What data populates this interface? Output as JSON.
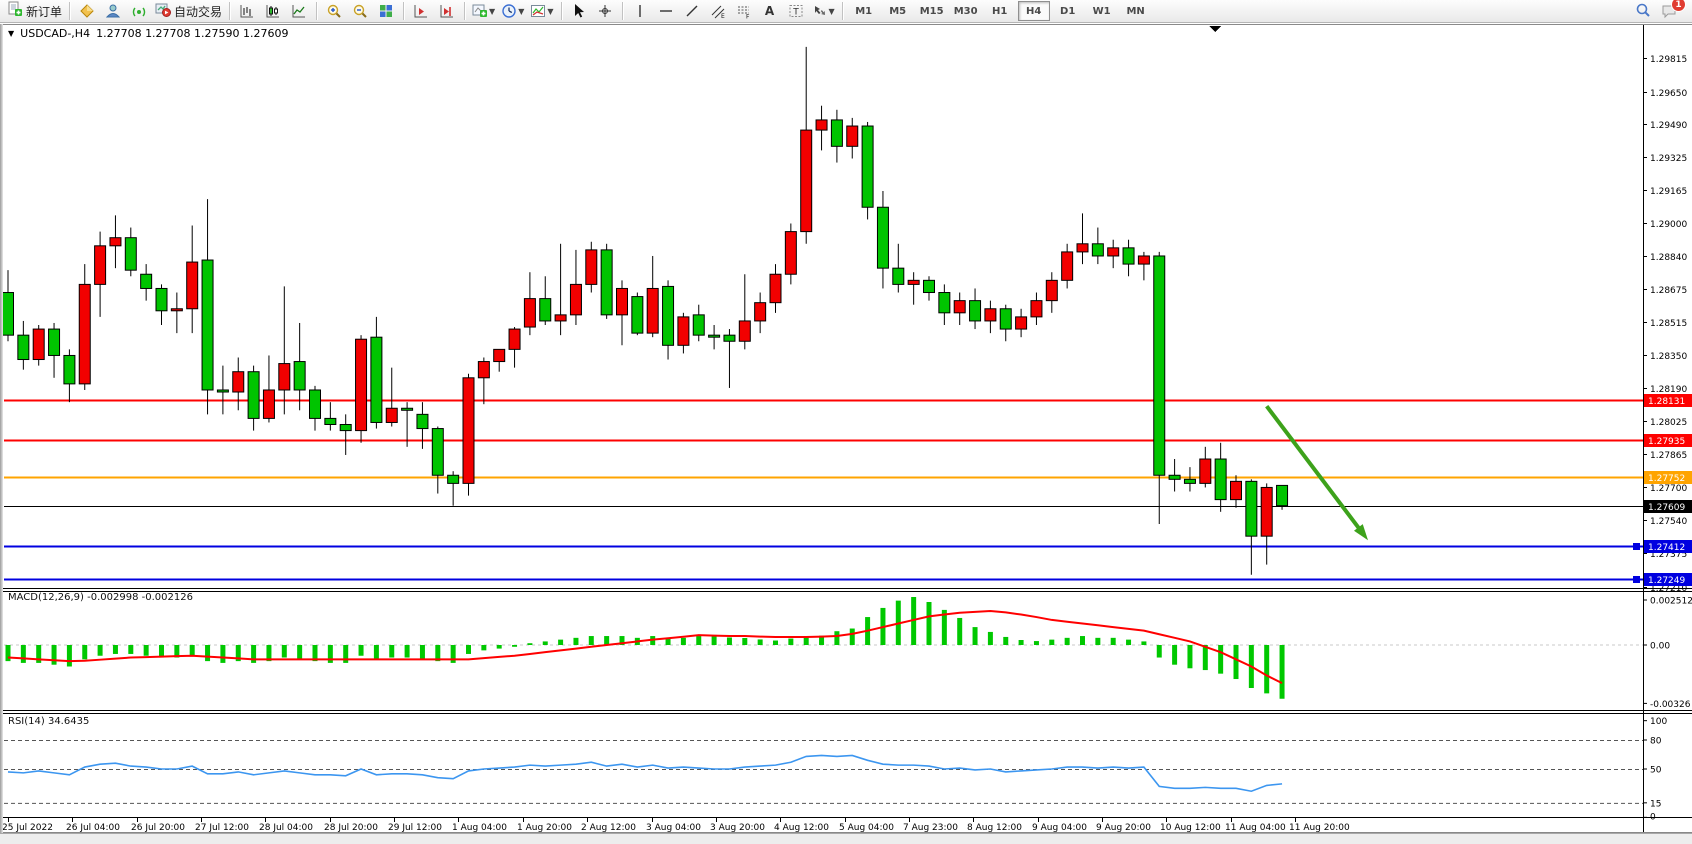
{
  "toolbar": {
    "new_order_label": "新订单",
    "autotrading_label": "自动交易",
    "timeframes": [
      "M1",
      "M5",
      "M15",
      "M30",
      "H1",
      "H4",
      "D1",
      "W1",
      "MN"
    ],
    "active_timeframe": "H4",
    "notification_count": "1",
    "icon_names": [
      "new-order",
      "gold-cube",
      "profile",
      "signal",
      "autotrading",
      "bar-chart",
      "candlestick-chart",
      "line-chart",
      "zoom-in",
      "zoom-out",
      "tile-windows",
      "chart-forward",
      "chart-end",
      "add-indicator",
      "period",
      "template",
      "cursor",
      "crosshair",
      "vertical-line",
      "horizontal-line",
      "trendline",
      "equidistant-channel",
      "fibonacci",
      "text",
      "text-label",
      "arrow-tools",
      "search",
      "chat"
    ]
  },
  "chart_window": {
    "collapse_glyph": "▼",
    "symbol_title": "USDCAD-,H4",
    "ohlc_text": "1.27708 1.27708 1.27590 1.27609"
  },
  "chart_data": {
    "type": "candlestick",
    "symbol": "USDCAD-",
    "period": "H4",
    "up_color": "#f20000",
    "down_color": "#00c400",
    "outline_color": "#000000",
    "time_labels": [
      "25 Jul 2022",
      "26 Jul 04:00",
      "26 Jul 20:00",
      "27 Jul 12:00",
      "28 Jul 04:00",
      "28 Jul 20:00",
      "29 Jul 12:00",
      "1 Aug 04:00",
      "1 Aug 20:00",
      "2 Aug 12:00",
      "3 Aug 04:00",
      "3 Aug 20:00",
      "4 Aug 12:00",
      "5 Aug 04:00",
      "7 Aug 23:00",
      "8 Aug 12:00",
      "9 Aug 04:00",
      "9 Aug 20:00",
      "10 Aug 12:00",
      "11 Aug 04:00",
      "11 Aug 20:00"
    ],
    "price_ticks": [
      "1.29815",
      "1.29650",
      "1.29490",
      "1.29325",
      "1.29165",
      "1.29000",
      "1.28840",
      "1.28675",
      "1.28515",
      "1.28350",
      "1.28190",
      "1.28025",
      "1.27865",
      "1.27700",
      "1.27540",
      "1.27375",
      "1.27210"
    ],
    "candles": [
      [
        1.2866,
        1.2877,
        1.2842,
        1.2845
      ],
      [
        1.2845,
        1.2852,
        1.2828,
        1.2833
      ],
      [
        1.2833,
        1.285,
        1.283,
        1.2848
      ],
      [
        1.2848,
        1.2851,
        1.2824,
        1.2835
      ],
      [
        1.2835,
        1.2838,
        1.2812,
        1.2821
      ],
      [
        1.2821,
        1.288,
        1.2818,
        1.287
      ],
      [
        1.287,
        1.2896,
        1.2854,
        1.2889
      ],
      [
        1.2889,
        1.2904,
        1.2878,
        1.2893
      ],
      [
        1.2893,
        1.2898,
        1.2874,
        1.2877
      ],
      [
        1.2875,
        1.288,
        1.2862,
        1.2868
      ],
      [
        1.2868,
        1.287,
        1.285,
        1.2857
      ],
      [
        1.2857,
        1.2866,
        1.2846,
        1.2858
      ],
      [
        1.2858,
        1.2899,
        1.2846,
        1.2881
      ],
      [
        1.2882,
        1.2912,
        1.2806,
        1.2818
      ],
      [
        1.2818,
        1.283,
        1.2806,
        1.2817
      ],
      [
        1.2817,
        1.2834,
        1.2808,
        1.2827
      ],
      [
        1.2827,
        1.283,
        1.2798,
        1.2804
      ],
      [
        1.2804,
        1.2835,
        1.2802,
        1.2818
      ],
      [
        1.2818,
        1.2869,
        1.2806,
        1.2831
      ],
      [
        1.2832,
        1.2851,
        1.2808,
        1.2818
      ],
      [
        1.2818,
        1.282,
        1.2798,
        1.2804
      ],
      [
        1.2804,
        1.2812,
        1.2798,
        1.2801
      ],
      [
        1.2801,
        1.2806,
        1.2786,
        1.2798
      ],
      [
        1.2798,
        1.2845,
        1.2792,
        1.2843
      ],
      [
        1.2844,
        1.2854,
        1.2799,
        1.2802
      ],
      [
        1.2802,
        1.2829,
        1.28,
        1.2809
      ],
      [
        1.2809,
        1.2812,
        1.279,
        1.2808
      ],
      [
        1.2806,
        1.2812,
        1.2789,
        1.2799
      ],
      [
        1.2799,
        1.28,
        1.2767,
        1.2776
      ],
      [
        1.2776,
        1.2778,
        1.2761,
        1.2772
      ],
      [
        1.2772,
        1.2826,
        1.2766,
        1.2824
      ],
      [
        1.2824,
        1.2834,
        1.2811,
        1.2832
      ],
      [
        1.2832,
        1.2838,
        1.2827,
        1.2838
      ],
      [
        1.2838,
        1.2849,
        1.2829,
        1.2848
      ],
      [
        1.2849,
        1.2876,
        1.2845,
        1.2863
      ],
      [
        1.2863,
        1.2874,
        1.285,
        1.2852
      ],
      [
        1.2852,
        1.289,
        1.2845,
        1.2855
      ],
      [
        1.2855,
        1.2887,
        1.285,
        1.287
      ],
      [
        1.287,
        1.2891,
        1.2866,
        1.2887
      ],
      [
        1.2887,
        1.289,
        1.2853,
        1.2855
      ],
      [
        1.2855,
        1.2872,
        1.284,
        1.2868
      ],
      [
        1.2864,
        1.2866,
        1.2845,
        1.2846
      ],
      [
        1.2846,
        1.2884,
        1.2844,
        1.2868
      ],
      [
        1.2869,
        1.2872,
        1.2833,
        1.284
      ],
      [
        1.284,
        1.2856,
        1.2836,
        1.2854
      ],
      [
        1.2855,
        1.286,
        1.2842,
        1.2845
      ],
      [
        1.2845,
        1.285,
        1.2838,
        1.2844
      ],
      [
        1.2845,
        1.2848,
        1.2819,
        1.2842
      ],
      [
        1.2842,
        1.2875,
        1.2838,
        1.2852
      ],
      [
        1.2852,
        1.2866,
        1.2846,
        1.2861
      ],
      [
        1.2861,
        1.288,
        1.2856,
        1.2875
      ],
      [
        1.2875,
        1.29,
        1.287,
        1.2896
      ],
      [
        1.2896,
        1.2987,
        1.289,
        1.2946
      ],
      [
        1.2946,
        1.2958,
        1.2936,
        1.2951
      ],
      [
        1.2951,
        1.2956,
        1.293,
        1.2938
      ],
      [
        1.2938,
        1.2952,
        1.2932,
        1.2948
      ],
      [
        1.2948,
        1.295,
        1.2902,
        1.2908
      ],
      [
        1.2908,
        1.2916,
        1.2868,
        1.2878
      ],
      [
        1.2878,
        1.289,
        1.2866,
        1.287
      ],
      [
        1.287,
        1.2876,
        1.286,
        1.2872
      ],
      [
        1.2872,
        1.2874,
        1.2862,
        1.2866
      ],
      [
        1.2866,
        1.287,
        1.285,
        1.2856
      ],
      [
        1.2856,
        1.2866,
        1.285,
        1.2862
      ],
      [
        1.2862,
        1.2868,
        1.2848,
        1.2852
      ],
      [
        1.2852,
        1.2862,
        1.2846,
        1.2858
      ],
      [
        1.2858,
        1.286,
        1.2842,
        1.2848
      ],
      [
        1.2848,
        1.2858,
        1.2844,
        1.2854
      ],
      [
        1.2854,
        1.2866,
        1.285,
        1.2862
      ],
      [
        1.2862,
        1.2876,
        1.2856,
        1.2872
      ],
      [
        1.2872,
        1.289,
        1.2868,
        1.2886
      ],
      [
        1.2886,
        1.2905,
        1.288,
        1.289
      ],
      [
        1.289,
        1.2898,
        1.288,
        1.2884
      ],
      [
        1.2884,
        1.2892,
        1.2878,
        1.2888
      ],
      [
        1.2888,
        1.2892,
        1.2874,
        1.288
      ],
      [
        1.288,
        1.2886,
        1.2872,
        1.2884
      ],
      [
        1.2884,
        1.2886,
        1.2752,
        1.2776
      ],
      [
        1.2776,
        1.2784,
        1.2768,
        1.2774
      ],
      [
        1.2774,
        1.278,
        1.2768,
        1.2772
      ],
      [
        1.2772,
        1.279,
        1.277,
        1.2784
      ],
      [
        1.2784,
        1.2792,
        1.2758,
        1.2764
      ],
      [
        1.2764,
        1.2776,
        1.276,
        1.2773
      ],
      [
        1.2773,
        1.2774,
        1.2727,
        1.2746
      ],
      [
        1.2746,
        1.2772,
        1.2732,
        1.277
      ],
      [
        1.2771,
        1.2771,
        1.2759,
        1.2761
      ]
    ],
    "hlines": [
      {
        "price": 1.28131,
        "label": "1.28131",
        "color": "#fe0100",
        "width": 2,
        "handle": false
      },
      {
        "price": 1.27935,
        "label": "1.27935",
        "color": "#fe0100",
        "width": 2,
        "handle": false
      },
      {
        "price": 1.27752,
        "label": "1.27752",
        "color": "#ffa400",
        "width": 2,
        "handle": false
      },
      {
        "price": 1.27609,
        "label": "1.27609",
        "color": "#000000",
        "width": 1,
        "handle": false
      },
      {
        "price": 1.27412,
        "label": "1.27412",
        "color": "#0000e0",
        "width": 2,
        "handle": true
      },
      {
        "price": 1.27249,
        "label": "1.27249",
        "color": "#0000e0",
        "width": 2,
        "handle": true
      }
    ],
    "current_price": 1.27609,
    "trend_arrow": {
      "from_bar": 82,
      "from_price": 1.281,
      "to_bar": 88.6,
      "to_price": 1.2744,
      "color": "#3da21b"
    },
    "macd": {
      "label_text": "MACD(12,26,9) -0.002998 -0.002126",
      "current_main": -0.002998,
      "current_signal": -0.002126,
      "hist_color": "#00c800",
      "signal_color": "#ff0000",
      "ticks": [
        {
          "label": "0.002512",
          "value": 0.002512
        },
        {
          "label": "0.00",
          "value": 0
        },
        {
          "label": "-0.00326",
          "value": -0.00326
        }
      ],
      "histogram": [
        -0.0009,
        -0.001,
        -0.001,
        -0.0011,
        -0.0012,
        -0.0008,
        -0.0006,
        -0.0005,
        -0.0005,
        -0.0006,
        -0.0007,
        -0.0007,
        -0.0006,
        -0.0009,
        -0.001,
        -0.0009,
        -0.001,
        -0.0009,
        -0.0007,
        -0.0008,
        -0.0009,
        -0.001,
        -0.001,
        -0.0006,
        -0.0008,
        -0.0007,
        -0.0007,
        -0.0008,
        -0.0009,
        -0.001,
        -0.0005,
        -0.0003,
        -0.0002,
        -0.0001,
        0.0001,
        0.0002,
        0.0003,
        0.0004,
        0.0005,
        0.0005,
        0.0005,
        0.0004,
        0.0005,
        0.0004,
        0.0004,
        0.0005,
        0.00056,
        0.00042,
        0.00039,
        0.00031,
        0.00025,
        0.00036,
        0.00042,
        0.00052,
        0.00077,
        0.00092,
        0.00156,
        0.00207,
        0.00248,
        0.00268,
        0.0024,
        0.00196,
        0.00151,
        0.001,
        0.00073,
        0.00045,
        0.00028,
        0.00022,
        0.0003,
        0.0004,
        0.0005,
        0.0004,
        0.0004,
        0.0003,
        0.0002,
        -0.0007,
        -0.0011,
        -0.0013,
        -0.0014,
        -0.0016,
        -0.0019,
        -0.0024,
        -0.0027,
        -0.003
      ],
      "signal": [
        -0.0007,
        -0.00075,
        -0.0008,
        -0.00085,
        -0.0009,
        -0.00088,
        -0.00082,
        -0.00076,
        -0.0007,
        -0.00068,
        -0.00065,
        -0.00062,
        -0.0006,
        -0.00065,
        -0.0007,
        -0.00075,
        -0.0008,
        -0.0008,
        -0.0008,
        -0.0008,
        -0.0008,
        -0.0008,
        -0.0008,
        -0.0008,
        -0.0008,
        -0.0008,
        -0.0008,
        -0.0008,
        -0.0008,
        -0.0008,
        -0.0008,
        -0.00073,
        -0.00066,
        -0.0006,
        -0.0005,
        -0.0004,
        -0.0003,
        -0.0002,
        -0.0001,
        0.0,
        0.0001,
        0.0002,
        0.0003,
        0.00038,
        0.00046,
        0.00055,
        0.00052,
        0.0005,
        0.0005,
        0.00047,
        0.00045,
        0.00045,
        0.00045,
        0.00047,
        0.0005,
        0.00062,
        0.0008,
        0.001,
        0.0012,
        0.0014,
        0.0016,
        0.0017,
        0.0018,
        0.00185,
        0.0019,
        0.00182,
        0.0017,
        0.00156,
        0.0014,
        0.0013,
        0.0012,
        0.0011,
        0.001,
        0.0009,
        0.0008,
        0.0006,
        0.0004,
        0.0002,
        -0.0001,
        -0.0004,
        -0.0008,
        -0.0012,
        -0.0017,
        -0.00213
      ]
    },
    "rsi": {
      "label_text": "RSI(14) 34.6435",
      "current_value": 34.6435,
      "line_color": "#3c96f0",
      "ticks": [
        {
          "label": "100",
          "value": 100
        },
        {
          "label": "80",
          "value": 80
        },
        {
          "label": "50",
          "value": 50
        },
        {
          "label": "15",
          "value": 15
        },
        {
          "label": "0",
          "value": 0
        }
      ],
      "levels": [
        80,
        50,
        15
      ],
      "values": [
        47,
        46,
        48,
        46,
        44,
        52,
        55,
        56,
        53,
        52,
        50,
        50,
        53,
        45,
        45,
        47,
        44,
        46,
        48,
        46,
        44,
        44,
        43,
        50,
        44,
        45,
        45,
        44,
        41,
        40,
        48,
        50,
        51,
        52,
        54,
        53,
        54,
        55,
        57,
        53,
        55,
        52,
        54,
        51,
        52,
        51,
        50,
        50,
        52,
        53,
        54,
        57,
        63,
        64,
        63,
        64,
        59,
        55,
        54,
        54,
        53,
        50,
        51,
        49,
        50,
        47,
        48,
        49,
        50,
        52,
        52,
        51,
        52,
        51,
        52,
        32,
        30,
        30,
        31,
        30,
        30,
        27,
        33,
        34.6
      ]
    }
  }
}
